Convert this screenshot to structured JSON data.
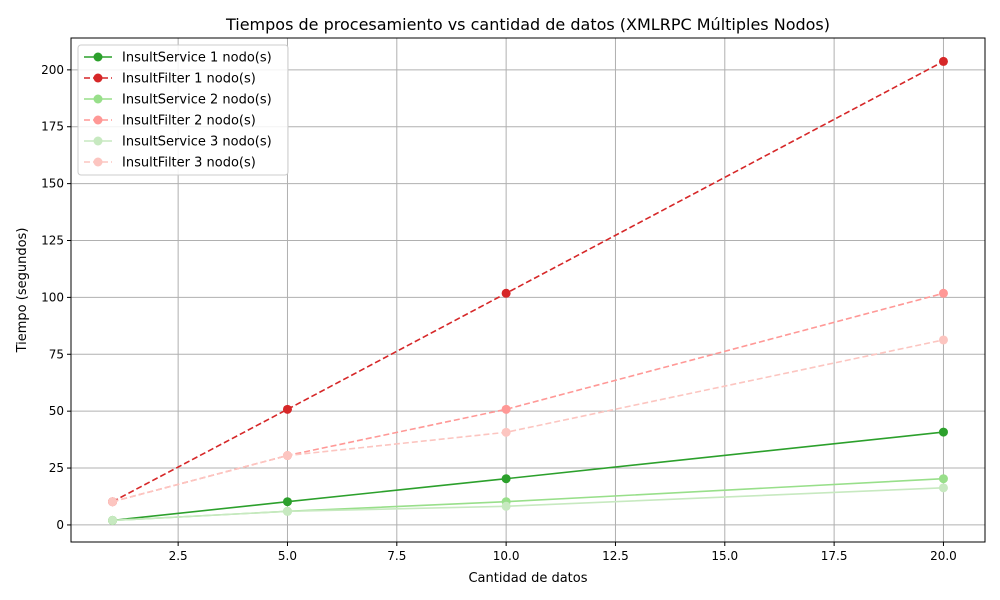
{
  "chart_data": {
    "type": "line",
    "title": "Tiempos de procesamiento vs cantidad de datos (XMLRPC Múltiples Nodos)",
    "xlabel": "Cantidad de datos",
    "ylabel": "Tiempo (segundos)",
    "xlim": [
      0.05,
      20.95
    ],
    "ylim": [
      -7.5,
      214
    ],
    "x_ticks": [
      2.5,
      5.0,
      7.5,
      10.0,
      12.5,
      15.0,
      17.5,
      20.0
    ],
    "x_tick_labels": [
      "2.5",
      "5.0",
      "7.5",
      "10.0",
      "12.5",
      "15.0",
      "17.5",
      "20.0"
    ],
    "y_ticks": [
      0,
      25,
      50,
      75,
      100,
      125,
      150,
      175,
      200
    ],
    "y_tick_labels": [
      "0",
      "25",
      "50",
      "75",
      "100",
      "125",
      "150",
      "175",
      "200"
    ],
    "grid": true,
    "legend_position": "top-left",
    "x": [
      1,
      5,
      10,
      20
    ],
    "series": [
      {
        "name": "InsultService 1 nodo(s)",
        "values": [
          2,
          10.2,
          20.3,
          40.8
        ],
        "color": "#2ca02c",
        "dashed": false
      },
      {
        "name": "InsultFilter 1 nodo(s)",
        "values": [
          10.2,
          50.8,
          101.8,
          203.7
        ],
        "color": "#d62728",
        "dashed": true
      },
      {
        "name": "InsultService 2 nodo(s)",
        "values": [
          2,
          6,
          10.2,
          20.3
        ],
        "color": "#98df8a",
        "dashed": false
      },
      {
        "name": "InsultFilter 2 nodo(s)",
        "values": [
          10.2,
          30.5,
          50.8,
          101.8
        ],
        "color": "#ff9896",
        "dashed": true
      },
      {
        "name": "InsultService 3 nodo(s)",
        "values": [
          2,
          6,
          8.2,
          16.3
        ],
        "color": "#c7e9c0",
        "dashed": false
      },
      {
        "name": "InsultFilter 3 nodo(s)",
        "values": [
          10.2,
          30.5,
          40.7,
          81.3
        ],
        "color": "#fcc5c0",
        "dashed": true
      }
    ]
  }
}
